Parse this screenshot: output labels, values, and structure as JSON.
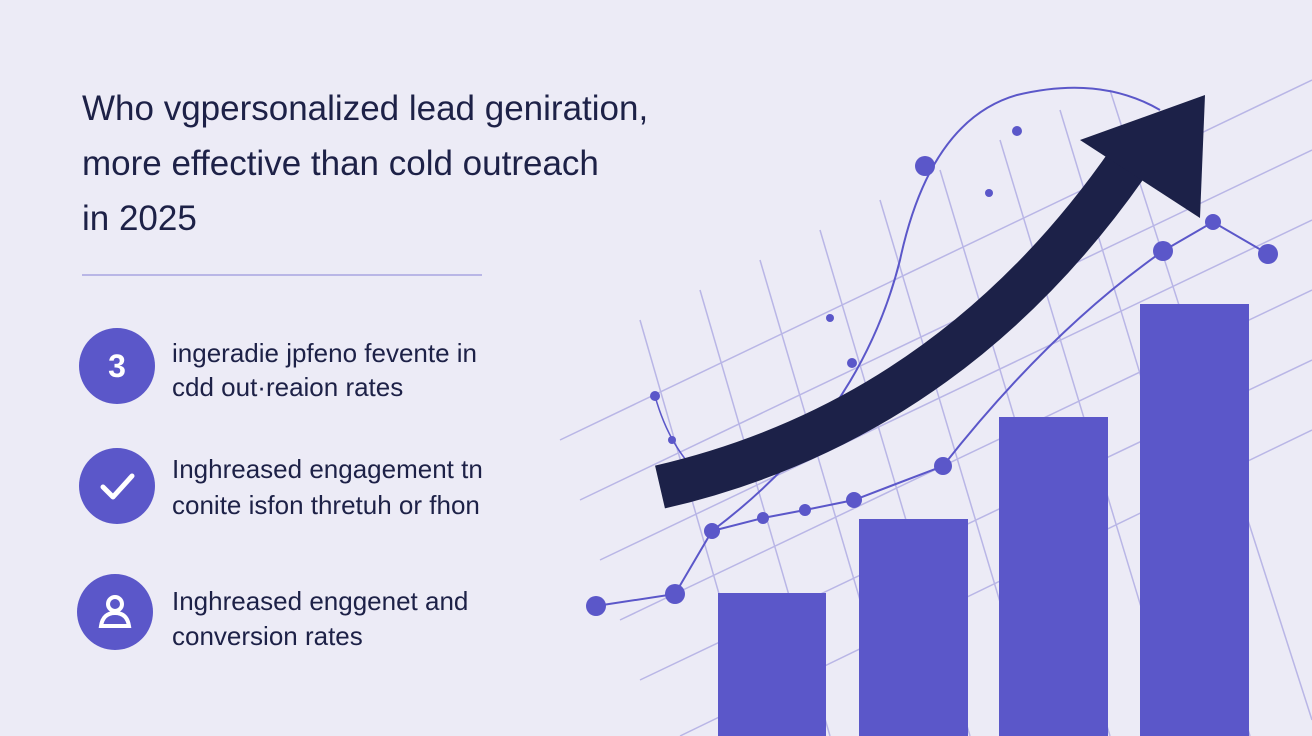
{
  "header": {
    "title_lines": [
      "Who vgpersonalized  lead geniration,",
      "more effective than cold outreach",
      "in 2025"
    ]
  },
  "items": [
    {
      "badge": "3",
      "lines": [
        "ingeradie jpfeno fevente in",
        "cdd out·reaion rates"
      ]
    },
    {
      "lines": [
        "Inghreased engagement tn",
        "conite isfon thretuh or fhon"
      ]
    },
    {
      "lines": [
        "Inghreased enggenet and",
        "conversion rates"
      ]
    }
  ]
}
